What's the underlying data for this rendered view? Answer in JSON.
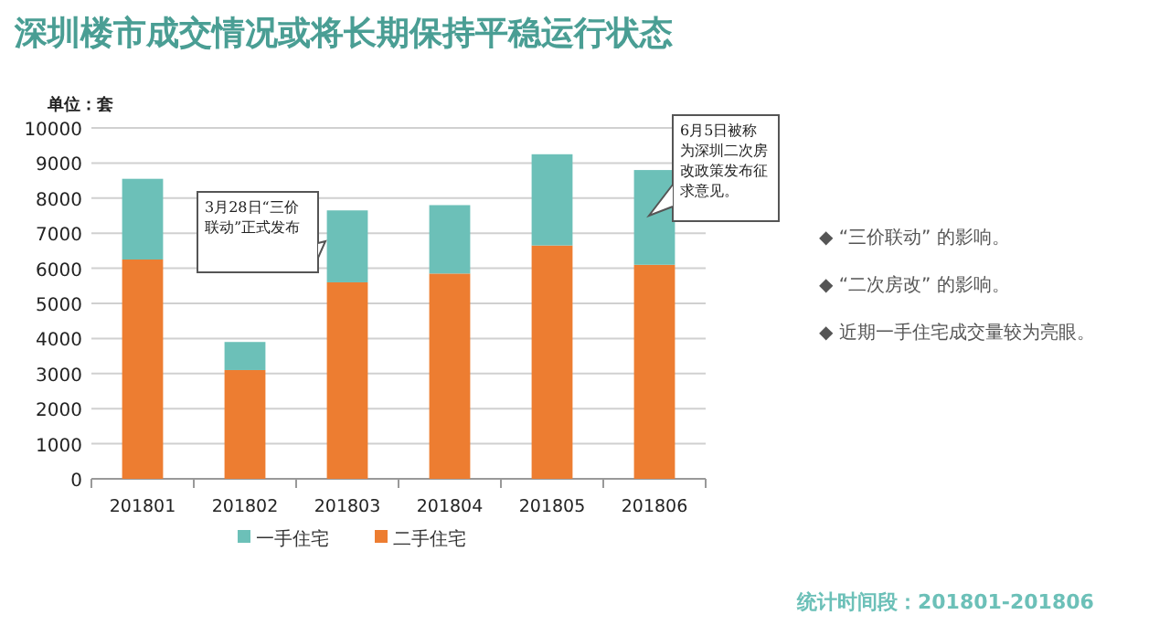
{
  "chart_data": {
    "type": "bar",
    "title": "深圳楼市成交情况或将长期保持平稳运行状态",
    "ylabel": "单位：套",
    "categories": [
      "201801",
      "201802",
      "201803",
      "201804",
      "201805",
      "201806"
    ],
    "stacked": true,
    "series": [
      {
        "name": "二手住宅",
        "color": "#ed7d31",
        "values": [
          6250,
          3100,
          5600,
          5850,
          6650,
          6100
        ]
      },
      {
        "name": "一手住宅",
        "color": "#6cc0b8",
        "values": [
          2300,
          800,
          2050,
          1950,
          2600,
          2700
        ]
      }
    ],
    "ylim": [
      0,
      10000
    ],
    "yticks": [
      0,
      1000,
      2000,
      3000,
      4000,
      5000,
      6000,
      7000,
      8000,
      9000,
      10000
    ],
    "grid": "y",
    "legend": "bottom",
    "annotations": [
      "3月28日“三价联动”正式发布",
      "6月5日被称为深圳二次房改政策发布征求意见。",
      "◆ “三价联动” 的影响。",
      "◆ “二次房改” 的影响。",
      "◆ 近期一手住宅成交量较为亮眼。",
      "统计时间段：201801-201806"
    ]
  }
}
